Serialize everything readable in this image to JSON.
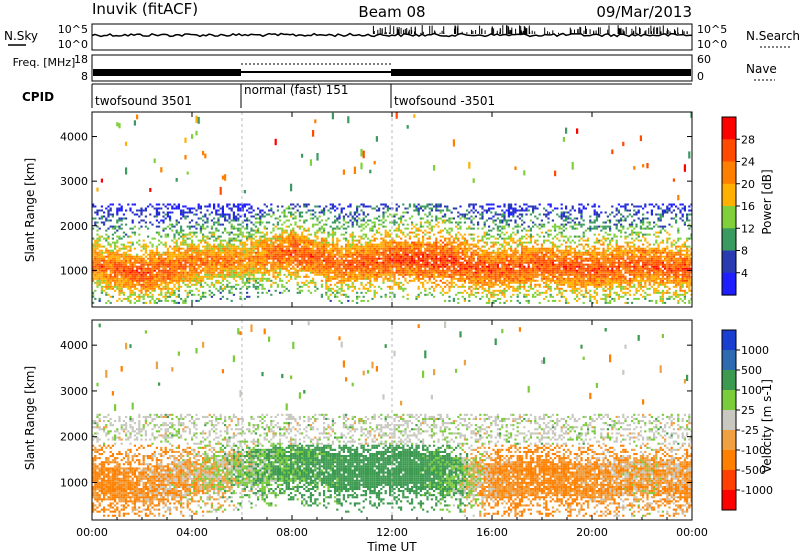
{
  "header": {
    "station": "Inuvik (fitACF)",
    "beam": "Beam 08",
    "date": "09/Mar/2013"
  },
  "noise_panel": {
    "left_label": "N.Sky",
    "left_ticks": [
      "10^5",
      "10^0"
    ],
    "right_label": "N.Search",
    "right_ticks": [
      "10^5",
      "10^0"
    ]
  },
  "freq_panel": {
    "left_label": "Freq. [MHz]",
    "left_ticks": [
      "18",
      "8"
    ],
    "right_label": "Nave",
    "right_ticks": [
      "60",
      "0"
    ]
  },
  "cpid_panel": {
    "label": "CPID",
    "modes": [
      {
        "name": "twofsound 3501",
        "start_hour": 0,
        "end_hour": 6
      },
      {
        "name": "normal (fast) 151",
        "start_hour": 6,
        "end_hour": 12
      },
      {
        "name": "twofsound -3501",
        "start_hour": 12,
        "end_hour": 24
      }
    ]
  },
  "power_colorbar": {
    "title": "Power [dB]",
    "ticks": [
      "28",
      "24",
      "20",
      "16",
      "12",
      "8",
      "4"
    ],
    "colors": [
      "#ff0000",
      "#ff4a00",
      "#ff8000",
      "#ffb000",
      "#7fd03a",
      "#3a9a60",
      "#2a3ab0",
      "#1e1eff"
    ]
  },
  "velocity_colorbar": {
    "title": "Velocity [m s-1]",
    "ticks": [
      "1000",
      "500",
      "100",
      "25",
      "-25",
      "-100",
      "-500",
      "-1000"
    ],
    "colors": [
      "#1a3fd0",
      "#2e6ab0",
      "#3c9a50",
      "#7acc3a",
      "#c8c8c0",
      "#f0a040",
      "#ff8000",
      "#ff4000",
      "#ff0000"
    ]
  },
  "chart_data": [
    {
      "type": "heatmap",
      "ylabel": "Slant Range [km]",
      "ylim": [
        180,
        4550
      ],
      "yticks": [
        1000,
        2000,
        3000,
        4000
      ],
      "xlim": [
        0,
        24
      ],
      "xticks": [
        "00:00",
        "04:00",
        "08:00",
        "12:00",
        "16:00",
        "20:00",
        "00:00"
      ],
      "colorbar": "Power [dB]",
      "main_band": {
        "hours": [
          0,
          2,
          4,
          6,
          8,
          10,
          12,
          14,
          16,
          18,
          20,
          22,
          24
        ],
        "center_km": [
          1100,
          900,
          1150,
          1200,
          1400,
          1100,
          1250,
          1200,
          1000,
          1100,
          1000,
          1100,
          1000
        ],
        "strength_db": [
          22,
          24,
          22,
          20,
          24,
          23,
          25,
          26,
          24,
          24,
          24,
          24,
          24
        ]
      }
    },
    {
      "type": "heatmap",
      "ylabel": "Slant Range [km]",
      "ylim": [
        180,
        4550
      ],
      "yticks": [
        1000,
        2000,
        3000,
        4000
      ],
      "xlim": [
        0,
        24
      ],
      "xticks": [
        "00:00",
        "04:00",
        "08:00",
        "12:00",
        "16:00",
        "20:00",
        "00:00"
      ],
      "xlabel": "Time UT",
      "colorbar": "Velocity [m s-1]",
      "main_band": {
        "hours": [
          0,
          2,
          4,
          6,
          8,
          10,
          12,
          14,
          16,
          18,
          20,
          22,
          24
        ],
        "center_km": [
          1000,
          900,
          1100,
          1300,
          1400,
          1200,
          1300,
          1200,
          1000,
          1100,
          1000,
          1100,
          1000
        ],
        "velocity_ms": [
          -150,
          -100,
          -50,
          50,
          150,
          200,
          250,
          150,
          -100,
          -150,
          -100,
          -50,
          -100
        ]
      }
    }
  ]
}
